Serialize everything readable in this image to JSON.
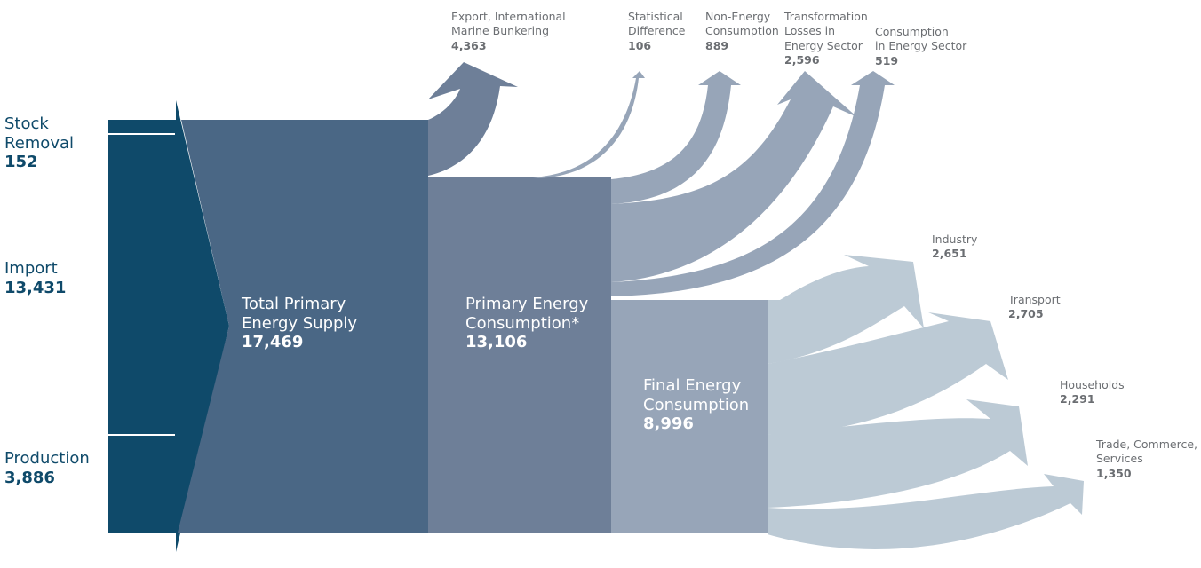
{
  "sources": [
    {
      "id": "stock",
      "label_lines": [
        "Stock",
        "Removal"
      ],
      "value": "152"
    },
    {
      "id": "import",
      "label_lines": [
        "Import"
      ],
      "value": "13,431"
    },
    {
      "id": "production",
      "label_lines": [
        "Production"
      ],
      "value": "3,886"
    }
  ],
  "stages": [
    {
      "id": "tpes",
      "label_lines": [
        "Total Primary",
        "Energy Supply"
      ],
      "value": "17,469"
    },
    {
      "id": "pec",
      "label_lines": [
        "Primary Energy",
        "Consumption*"
      ],
      "value": "13,106"
    },
    {
      "id": "fec",
      "label_lines": [
        "Final Energy",
        "Consumption"
      ],
      "value": "8,996"
    }
  ],
  "losses": [
    {
      "id": "export",
      "label_lines": [
        "Export, International",
        "Marine Bunkering"
      ],
      "value": "4,363"
    },
    {
      "id": "statdiff",
      "label_lines": [
        "Statistical",
        "Difference"
      ],
      "value": "106"
    },
    {
      "id": "nonenergy",
      "label_lines": [
        "Non-Energy",
        "Consumption"
      ],
      "value": "889"
    },
    {
      "id": "translosses",
      "label_lines": [
        "Transformation",
        "Losses in",
        "Energy Sector"
      ],
      "value": "2,596"
    },
    {
      "id": "consumption_energy",
      "label_lines": [
        "Consumption",
        "in Energy Sector"
      ],
      "value": "519"
    }
  ],
  "sectors": [
    {
      "id": "industry",
      "label_lines": [
        "Industry"
      ],
      "value": "2,651"
    },
    {
      "id": "transport",
      "label_lines": [
        "Transport"
      ],
      "value": "2,705"
    },
    {
      "id": "households",
      "label_lines": [
        "Households"
      ],
      "value": "2,291"
    },
    {
      "id": "trade",
      "label_lines": [
        "Trade, Commerce,",
        "Services"
      ],
      "value": "1,350"
    }
  ],
  "colors": {
    "source": "#0f4a6a",
    "tpes": "#4a6785",
    "pec": "#6e7f98",
    "fec": "#97a5b8",
    "loss_flow": "#97a5b8",
    "sector_flow": "#bccad5",
    "source_text": "#0f4a6a",
    "small_text": "#6b6e72"
  }
}
